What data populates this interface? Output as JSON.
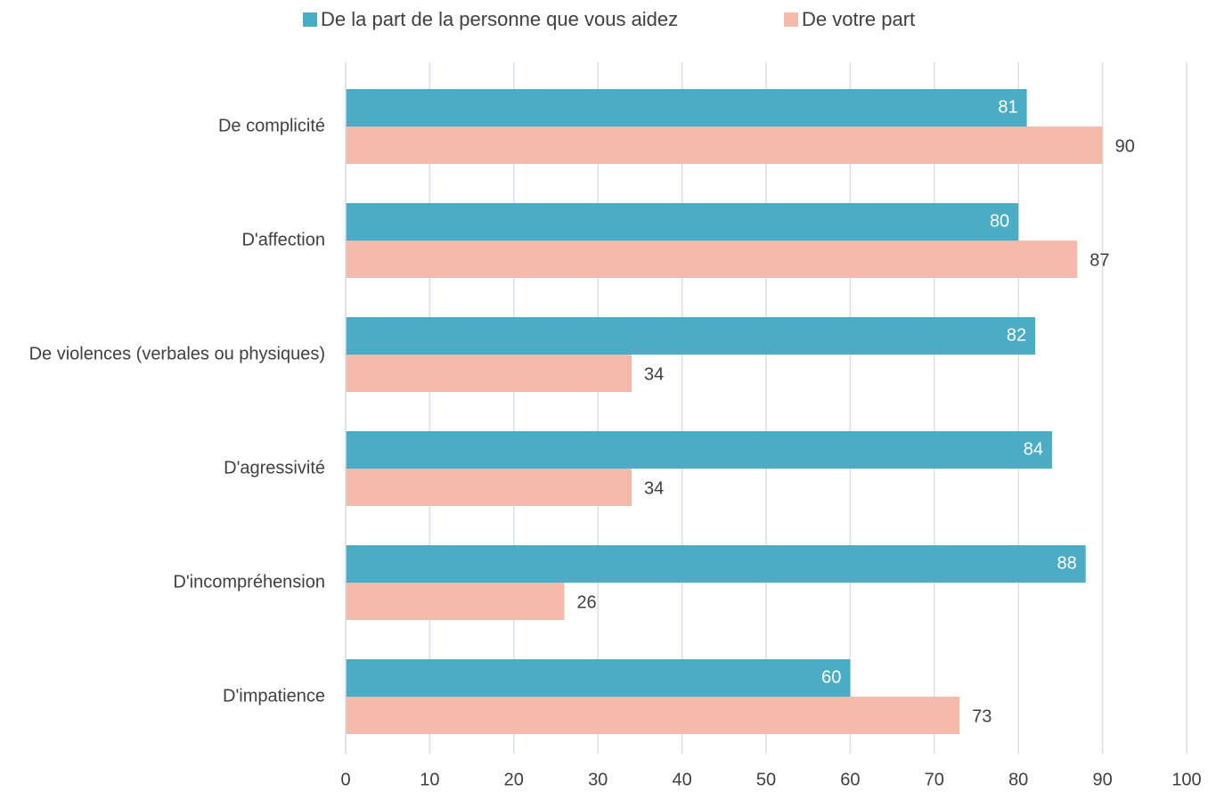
{
  "chart_data": {
    "type": "hbar",
    "categories": [
      "De complicité",
      "D'affection",
      "De violences (verbales ou physiques)",
      "D'agressivité",
      "D'incompréhension",
      "D'impatience"
    ],
    "series": [
      {
        "name": "De la part de la personne que vous aidez",
        "color": "#4bacc6",
        "values": [
          81,
          80,
          82,
          84,
          88,
          60
        ]
      },
      {
        "name": "De votre part",
        "color": "#f4b9a8",
        "values": [
          90,
          87,
          34,
          34,
          26,
          73
        ]
      }
    ],
    "xlim": [
      0,
      100
    ],
    "xticks": [
      0,
      10,
      20,
      30,
      40,
      50,
      60,
      70,
      80,
      90,
      100
    ],
    "grid": true,
    "legend": "top"
  }
}
